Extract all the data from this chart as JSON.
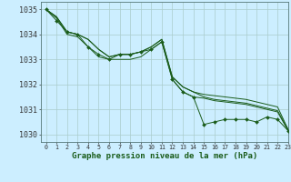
{
  "title": "Graphe pression niveau de la mer (hPa)",
  "background_color": "#cceeff",
  "grid_color": "#aacccc",
  "line_color": "#1a5c1a",
  "xlim": [
    -0.5,
    23
  ],
  "ylim": [
    1029.7,
    1035.3
  ],
  "yticks": [
    1030,
    1031,
    1032,
    1033,
    1034,
    1035
  ],
  "xticks": [
    0,
    1,
    2,
    3,
    4,
    5,
    6,
    7,
    8,
    9,
    10,
    11,
    12,
    13,
    14,
    15,
    16,
    17,
    18,
    19,
    20,
    21,
    22,
    23
  ],
  "series_plain": [
    [
      1035.0,
      1034.7,
      1034.1,
      1034.0,
      1033.8,
      1033.4,
      1033.1,
      1033.2,
      1033.2,
      1033.3,
      1033.5,
      1033.8,
      1032.3,
      1031.9,
      1031.7,
      1031.6,
      1031.55,
      1031.5,
      1031.45,
      1031.4,
      1031.3,
      1031.2,
      1031.1,
      1030.2
    ],
    [
      1035.0,
      1034.7,
      1034.1,
      1034.0,
      1033.8,
      1033.4,
      1033.1,
      1033.2,
      1033.2,
      1033.3,
      1033.5,
      1033.8,
      1032.3,
      1031.9,
      1031.7,
      1031.5,
      1031.4,
      1031.35,
      1031.3,
      1031.25,
      1031.15,
      1031.05,
      1030.95,
      1030.2
    ],
    [
      1035.0,
      1034.65,
      1034.0,
      1033.9,
      1033.5,
      1033.1,
      1033.0,
      1033.0,
      1033.0,
      1033.1,
      1033.4,
      1033.7,
      1032.2,
      1031.7,
      1031.5,
      1031.45,
      1031.35,
      1031.3,
      1031.25,
      1031.2,
      1031.1,
      1031.0,
      1030.9,
      1030.15
    ]
  ],
  "series_marker": [
    [
      1035.0,
      1034.55,
      1034.1,
      1034.0,
      1033.5,
      1033.2,
      1033.0,
      1033.2,
      1033.2,
      1033.3,
      1033.4,
      1033.7,
      1032.2,
      1031.7,
      1031.5,
      1030.4,
      1030.5,
      1030.6,
      1030.6,
      1030.6,
      1030.5,
      1030.7,
      1030.6,
      1030.15
    ]
  ]
}
